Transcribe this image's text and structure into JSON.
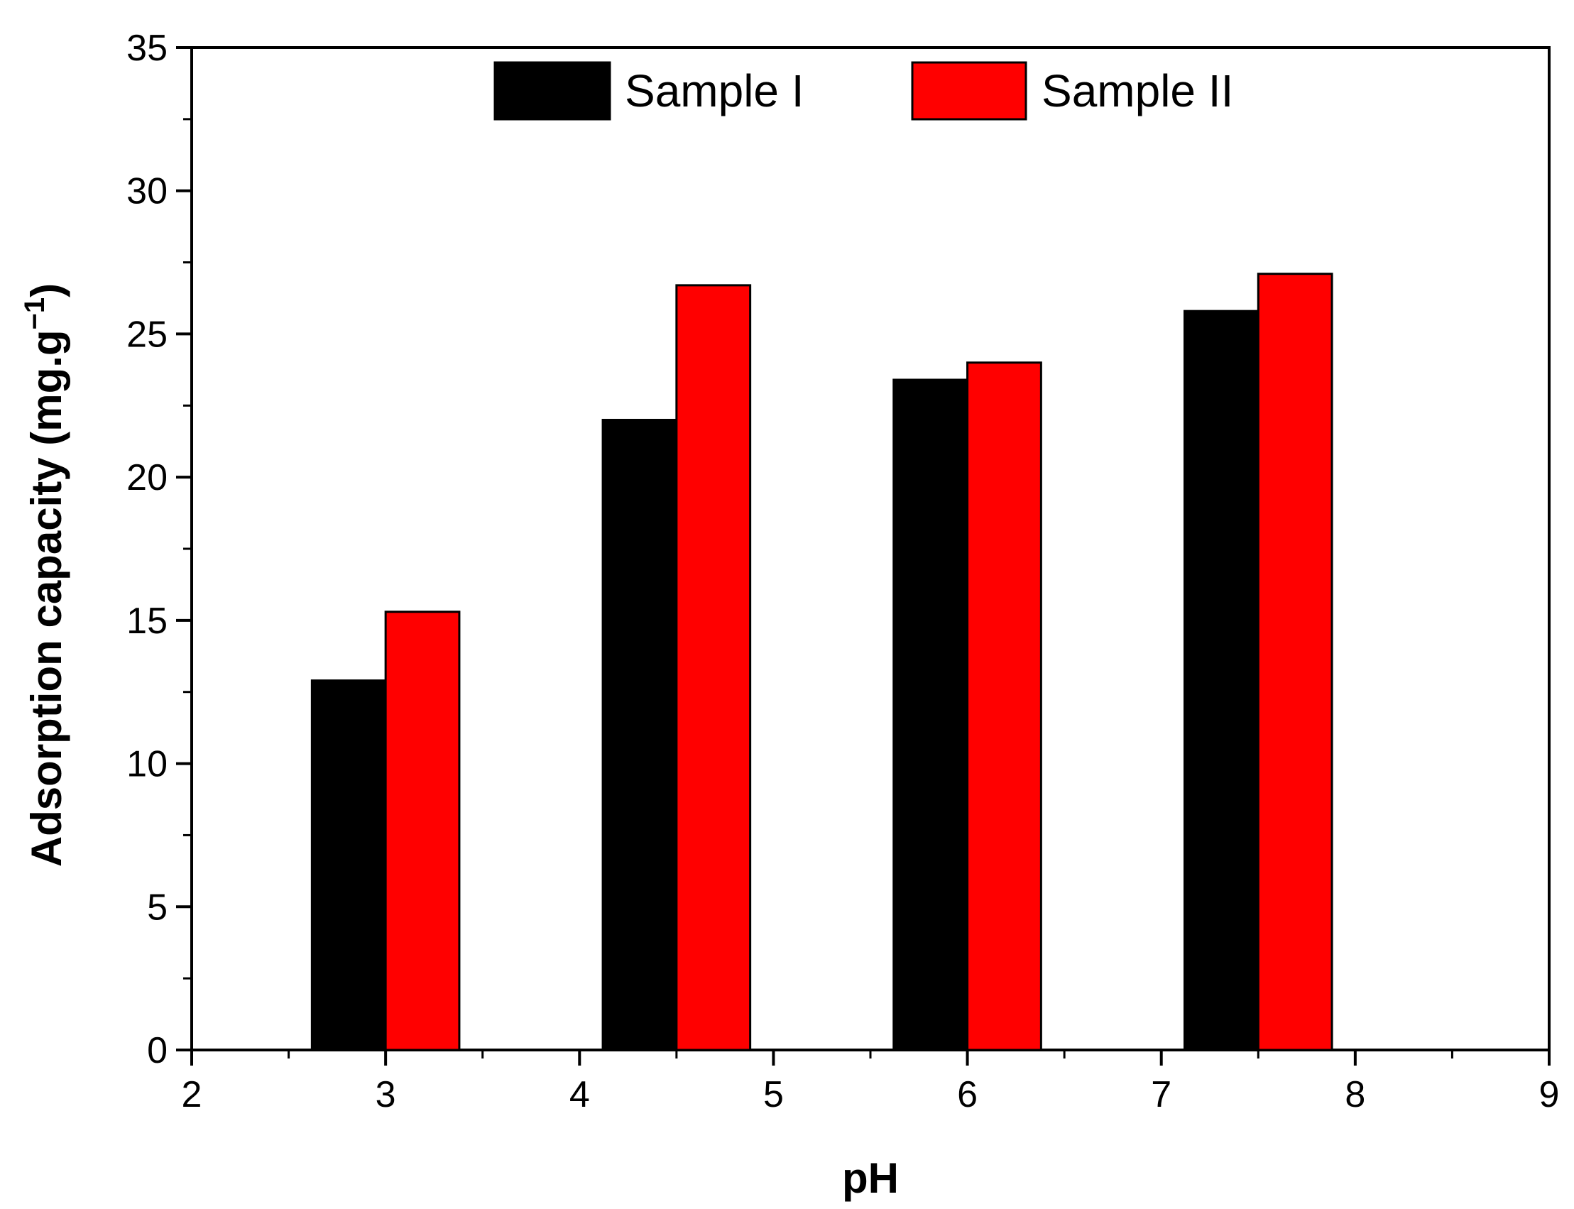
{
  "chart_data": {
    "type": "bar",
    "title": "",
    "xlabel": "pH",
    "ylabel_main": "Adsorption capacity (mg.g",
    "ylabel_sup": "−1",
    "ylabel_close": ")",
    "xlim": [
      2,
      9
    ],
    "ylim": [
      0,
      35
    ],
    "xticks": [
      "2",
      "3",
      "4",
      "5",
      "6",
      "7",
      "8",
      "9"
    ],
    "yticks": [
      "0",
      "5",
      "10",
      "15",
      "20",
      "25",
      "30",
      "35"
    ],
    "legend_position": "top-center",
    "grid": false,
    "x": [
      3,
      4.5,
      6,
      7.5
    ],
    "series": [
      {
        "name": "Sample I",
        "color": "#000000",
        "values": [
          12.9,
          22.0,
          23.4,
          25.8
        ]
      },
      {
        "name": "Sample II",
        "color": "#ff0000",
        "values": [
          15.3,
          26.7,
          24.0,
          27.1
        ]
      }
    ]
  }
}
